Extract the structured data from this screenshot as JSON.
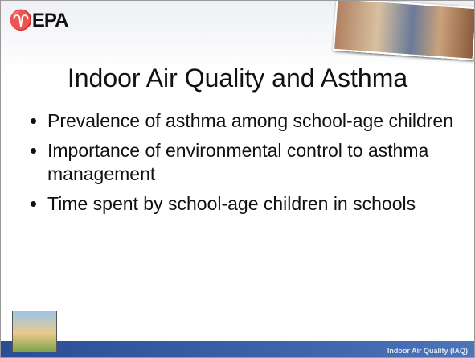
{
  "header": {
    "logo": "EPA"
  },
  "slide": {
    "title": "Indoor Air Quality and Asthma",
    "bullets": [
      "Prevalence of asthma among school-age children",
      "Importance of environmental control to asthma management",
      "Time spent by school-age children in schools"
    ]
  },
  "footer": {
    "label": "Indoor Air Quality (IAQ)"
  }
}
